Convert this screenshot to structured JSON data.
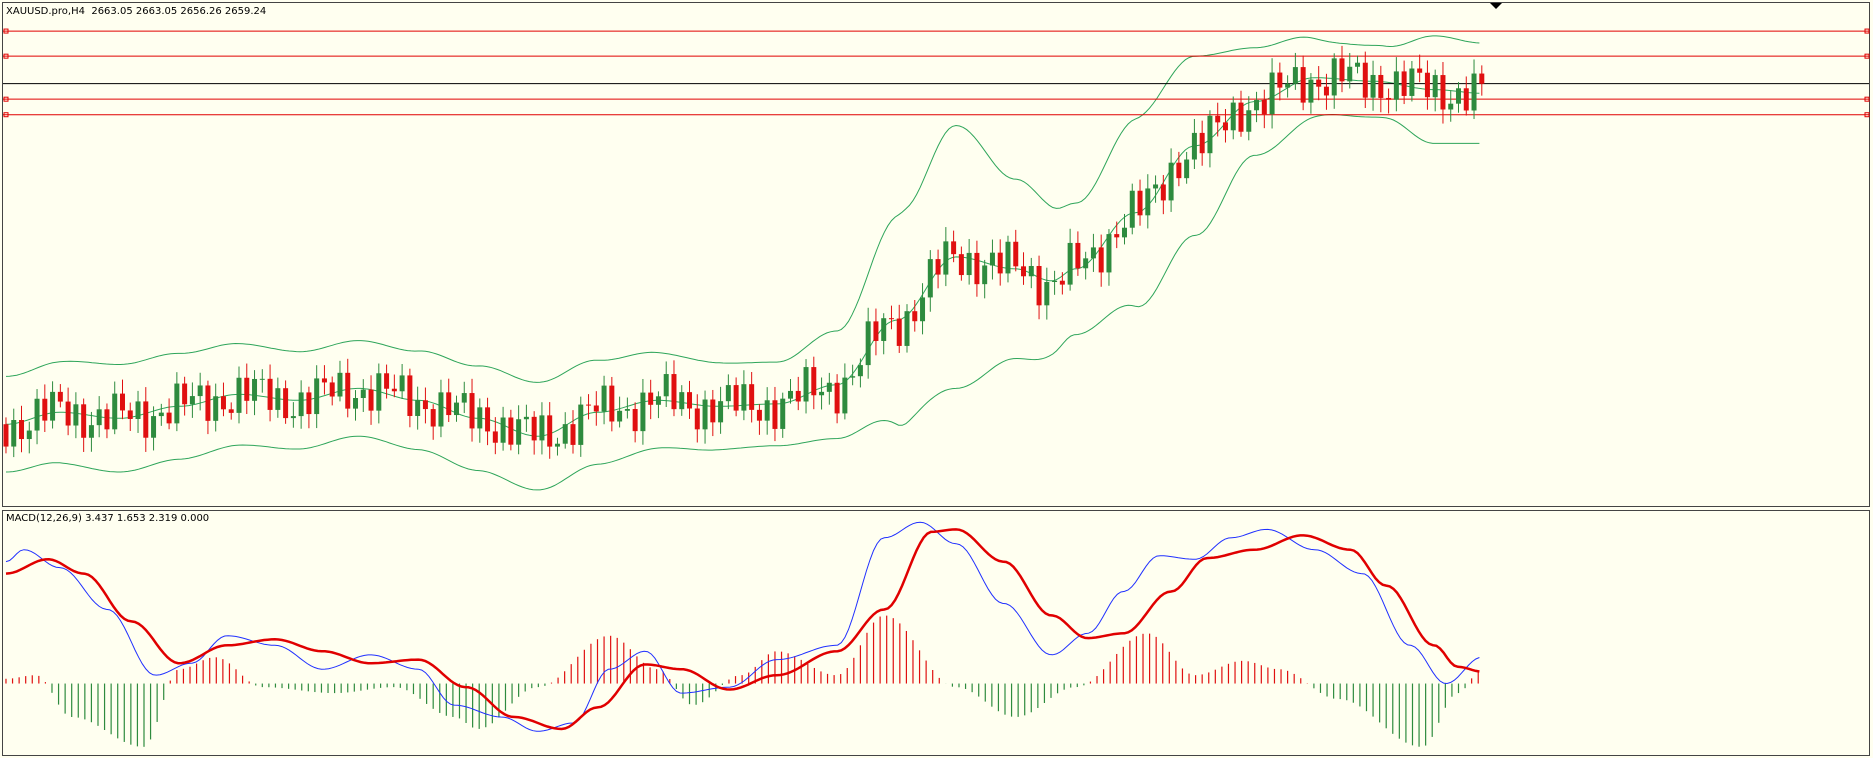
{
  "main_panel": {
    "label": "XAUUSD.pro,H4  2663.05 2663.05 2656.26 2659.24"
  },
  "indicator_panel": {
    "label": "MACD(12,26,9) 3.437 1.653 2.319 0.000"
  }
}
